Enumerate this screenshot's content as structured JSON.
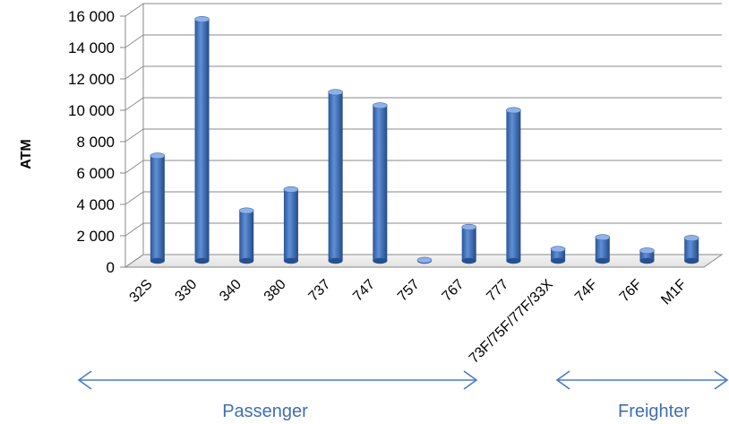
{
  "chart_data": {
    "type": "bar",
    "categories": [
      "32S",
      "330",
      "340",
      "380",
      "737",
      "747",
      "757",
      "767",
      "777",
      "73F/75F/77F/33X",
      "74F",
      "76F",
      "M1F"
    ],
    "values": [
      6700,
      15400,
      3200,
      4550,
      10750,
      9900,
      50,
      2150,
      9600,
      750,
      1500,
      650,
      1450
    ],
    "yticks": [
      0,
      2000,
      4000,
      6000,
      8000,
      10000,
      12000,
      14000,
      16000
    ],
    "ytick_labels": [
      "0",
      "2 000",
      "4 000",
      "6 000",
      "8 000",
      "10 000",
      "12 000",
      "14 000",
      "16 000"
    ],
    "ylim": [
      0,
      16000
    ],
    "ylabel": "ATM",
    "xlabel": "",
    "title": "",
    "grid": true,
    "bar_color": "#4a7cc6",
    "groups": [
      {
        "label": "Passenger",
        "color": "#3f6fb3"
      },
      {
        "label": "Freighter",
        "color": "#3f6fb3"
      }
    ]
  }
}
